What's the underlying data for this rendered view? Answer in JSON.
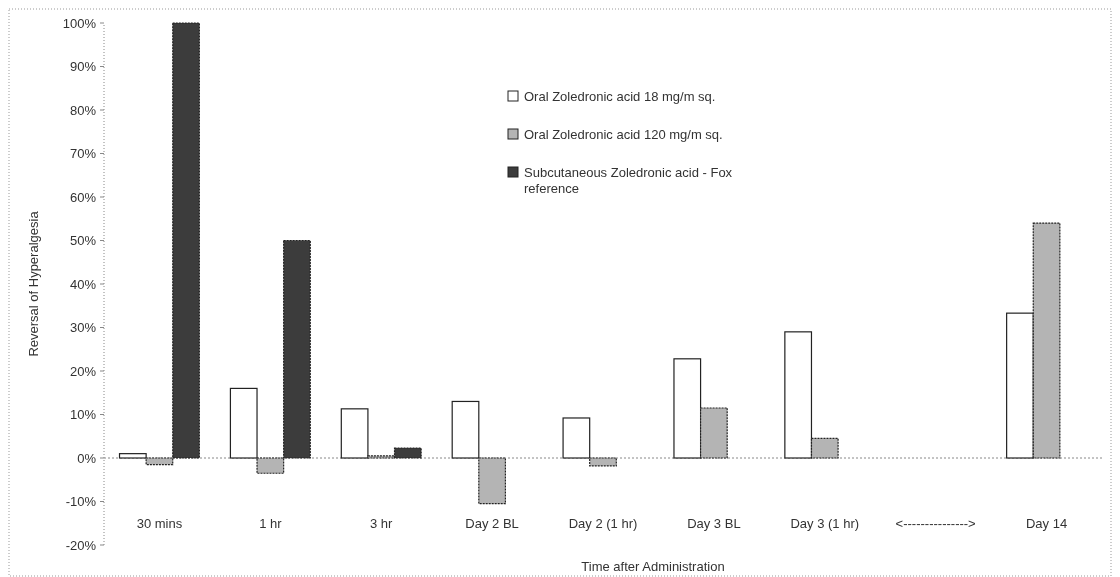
{
  "chart_data": {
    "type": "bar",
    "xlabel": "Time after Administration",
    "ylabel": "Reversal of Hyperalgesia",
    "categories": [
      "30 mins",
      "1 hr",
      "3 hr",
      "Day 2 BL",
      "Day 2 (1 hr)",
      "Day 3 BL",
      "Day 3 (1 hr)",
      "<--------------->",
      "Day 14"
    ],
    "series": [
      {
        "name": "Oral Zoledronic acid 18 mg/m sq.",
        "color": "#ffffff",
        "values": [
          1,
          16,
          11.3,
          13,
          9.2,
          22.8,
          29,
          null,
          33.3
        ]
      },
      {
        "name": "Oral Zoledronic acid 120 mg/m sq.",
        "color": "#b4b4b4",
        "values": [
          -1.5,
          -3.5,
          0.5,
          -10.5,
          -1.8,
          11.5,
          4.5,
          null,
          54
        ]
      },
      {
        "name": "Subcutaneous Zoledronic acid - Fox reference",
        "color": "#3c3c3c",
        "values": [
          100,
          50,
          2.3,
          null,
          null,
          null,
          null,
          null,
          null
        ]
      }
    ],
    "ylim": [
      -20,
      100
    ],
    "yticks": [
      {
        "value": -20,
        "label": "-20%"
      },
      {
        "value": -10,
        "label": "-10%"
      },
      {
        "value": 0,
        "label": "0%"
      },
      {
        "value": 10,
        "label": "10%"
      },
      {
        "value": 20,
        "label": "20%"
      },
      {
        "value": 30,
        "label": "30%"
      },
      {
        "value": 40,
        "label": "40%"
      },
      {
        "value": 50,
        "label": "50%"
      },
      {
        "value": 60,
        "label": "60%"
      },
      {
        "value": 70,
        "label": "70%"
      },
      {
        "value": 80,
        "label": "80%"
      },
      {
        "value": 90,
        "label": "90%"
      },
      {
        "value": 100,
        "label": "100%"
      }
    ],
    "ref_lines": [
      {
        "axis": "y",
        "value": 0,
        "color": "#888888",
        "line_style": "dotted"
      }
    ],
    "grid": false,
    "legend": "top right"
  }
}
